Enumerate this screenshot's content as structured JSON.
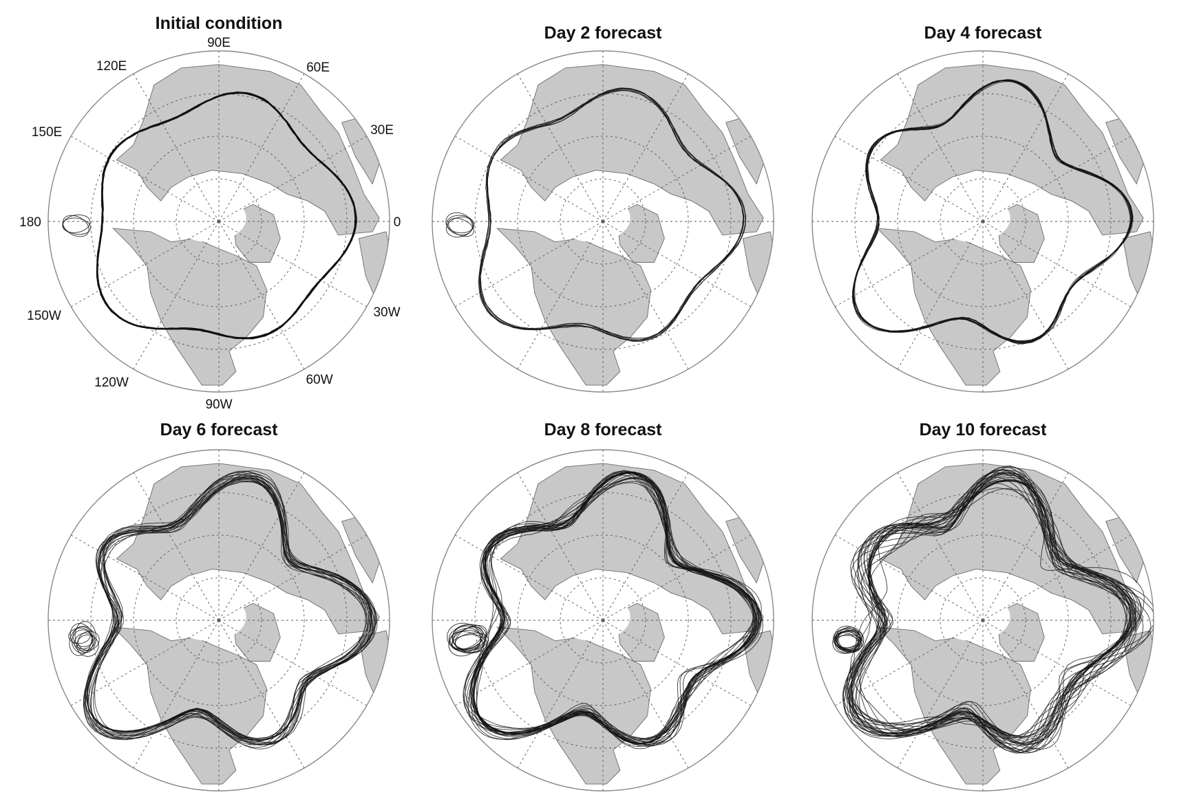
{
  "figure": {
    "panels": [
      {
        "title": "Initial condition",
        "spread": 0.3,
        "members": 5,
        "lobes": 0.05,
        "cutoff": {
          "present": true,
          "size": 0.45
        }
      },
      {
        "title": "Day 2 forecast",
        "spread": 0.8,
        "members": 8,
        "lobes": 0.07,
        "cutoff": {
          "present": true,
          "size": 0.6
        }
      },
      {
        "title": "Day 4 forecast",
        "spread": 1.6,
        "members": 12,
        "lobes": 0.11,
        "cutoff": {
          "present": false,
          "size": 0
        }
      },
      {
        "title": "Day 6 forecast",
        "spread": 3.0,
        "members": 18,
        "lobes": 0.13,
        "cutoff": {
          "present": true,
          "size": 1.0
        }
      },
      {
        "title": "Day 8 forecast",
        "spread": 4.5,
        "members": 22,
        "lobes": 0.13,
        "cutoff": {
          "present": true,
          "size": 0.85
        }
      },
      {
        "title": "Day 10 forecast",
        "spread": 7.0,
        "members": 26,
        "lobes": 0.12,
        "cutoff": {
          "present": true,
          "size": 0.6
        }
      }
    ],
    "longitude_labels": [
      "90E",
      "60E",
      "30E",
      "0",
      "30W",
      "60W",
      "90W",
      "120W",
      "150W",
      "180",
      "150E",
      "120E"
    ],
    "colors": {
      "land": "#c8c8c8",
      "ocean": "#ffffff",
      "contour": "#111111",
      "graticule": "#555555",
      "boundary": "#888888"
    }
  }
}
